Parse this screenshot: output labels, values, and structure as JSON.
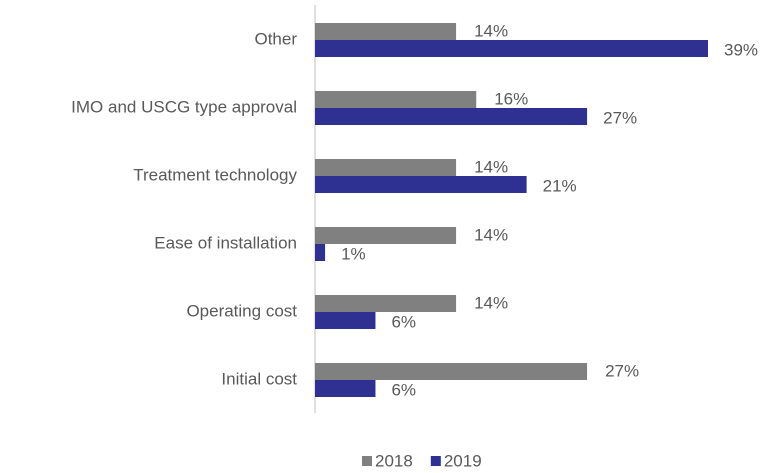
{
  "chart_data": {
    "type": "hbar",
    "categories": [
      "Other",
      "IMO and USCG type approval",
      "Treatment technology",
      "Ease of installation",
      "Operating cost",
      "Initial cost"
    ],
    "series": [
      {
        "name": "2018",
        "color": "#808080",
        "values": [
          14,
          16,
          14,
          14,
          14,
          27
        ],
        "value_labels": [
          "14%",
          "16%",
          "14%",
          "14%",
          "14%",
          "27%"
        ]
      },
      {
        "name": "2019",
        "color": "#2e3192",
        "values": [
          39,
          27,
          21,
          1,
          6,
          6
        ],
        "value_labels": [
          "39%",
          "27%",
          "21%",
          "1%",
          "6%",
          "6%"
        ]
      }
    ],
    "legend": "bottom"
  }
}
